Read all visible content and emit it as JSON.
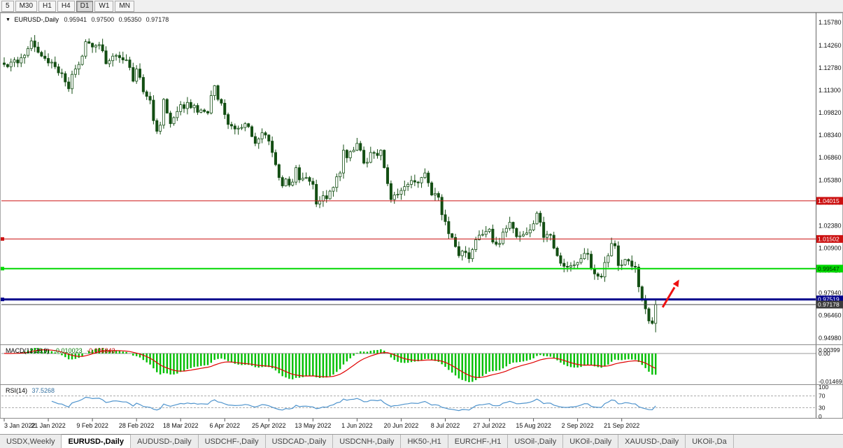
{
  "window": {
    "title_symbol": "EURUSD-,Daily",
    "open": "0.95941",
    "high": "0.97500",
    "low": "0.95350",
    "close": "0.97178"
  },
  "toolbar": {
    "timeframes": [
      "5",
      "M30",
      "H1",
      "H4",
      "D1",
      "W1",
      "MN"
    ],
    "active": "D1"
  },
  "chart_data": {
    "type": "candlestick",
    "symbol": "EURUSD",
    "timeframe": "Daily",
    "title": "EURUSD-,Daily 0.95941 0.97500 0.95350 0.97178",
    "y_range": [
      0.946,
      1.1605
    ],
    "y_axis_labels": [
      "1.15780",
      "1.14260",
      "1.12780",
      "1.11300",
      "1.09820",
      "1.08340",
      "1.06860",
      "1.05380",
      "1.03900",
      "1.02380",
      "1.00900",
      "0.99420",
      "0.97940",
      "0.96460",
      "0.94980"
    ],
    "x_labels": [
      "3 Jan 2022",
      "21 Jan 2022",
      "9 Feb 2022",
      "28 Feb 2022",
      "18 Mar 2022",
      "6 Apr 2022",
      "25 Apr 2022",
      "13 May 2022",
      "1 Jun 2022",
      "20 Jun 2022",
      "8 Jul 2022",
      "27 Jul 2022",
      "15 Aug 2022",
      "2 Sep 2022",
      "21 Sep 2022"
    ],
    "x_label_interval": 13,
    "first_open": 1.131,
    "last_candle_ohlc": [
      0.95941,
      0.975,
      0.9535,
      0.97178
    ],
    "closes": [
      1.13,
      1.1285,
      1.1315,
      1.133,
      1.131,
      1.1345,
      1.136,
      1.1405,
      1.1455,
      1.1415,
      1.138,
      1.1355,
      1.134,
      1.131,
      1.1315,
      1.1285,
      1.1245,
      1.124,
      1.1185,
      1.114,
      1.1235,
      1.127,
      1.13,
      1.1355,
      1.145,
      1.144,
      1.1415,
      1.1425,
      1.143,
      1.139,
      1.1305,
      1.1325,
      1.1355,
      1.136,
      1.1345,
      1.133,
      1.133,
      1.128,
      1.119,
      1.127,
      1.1215,
      1.112,
      1.109,
      1.1065,
      1.093,
      1.086,
      1.09,
      1.107,
      1.098,
      1.091,
      1.095,
      1.099,
      1.1035,
      1.101,
      1.105,
      1.1015,
      1.103,
      1.0985,
      1.1,
      1.099,
      1.098,
      1.1095,
      1.116,
      1.107,
      1.1045,
      1.097,
      1.0905,
      1.0895,
      1.0875,
      1.088,
      1.0885,
      1.091,
      1.089,
      1.0825,
      1.078,
      1.081,
      1.085,
      1.0835,
      1.0795,
      1.072,
      1.064,
      1.0555,
      1.05,
      1.0545,
      1.0505,
      1.0525,
      1.062,
      1.054,
      1.055,
      1.0555,
      1.053,
      1.051,
      1.038,
      1.04,
      1.0435,
      1.0415,
      1.0465,
      1.049,
      1.056,
      1.0585,
      1.0735,
      1.0685,
      1.0725,
      1.0735,
      1.078,
      1.0735,
      1.065,
      1.0655,
      1.072,
      1.0715,
      1.07,
      1.0735,
      1.062,
      1.0515,
      1.041,
      1.044,
      1.0445,
      1.047,
      1.0495,
      1.051,
      1.0535,
      1.0525,
      1.052,
      1.0555,
      1.0585,
      1.052,
      1.044,
      1.045,
      1.0425,
      1.031,
      1.0265,
      1.0185,
      1.016,
      1.01,
      1.004,
      1.007,
      1.006,
      1.002,
      1.008,
      1.0145,
      1.0175,
      1.018,
      1.02,
      1.0215,
      1.013,
      1.0115,
      1.012,
      1.0195,
      1.022,
      1.026,
      1.022,
      1.0165,
      1.017,
      1.018,
      1.019,
      1.021,
      1.025,
      1.032,
      1.026,
      1.016,
      1.018,
      1.0175,
      1.009,
      1.004,
      0.999,
      0.997,
      0.9965,
      0.9975,
      0.998,
      0.9995,
      1.002,
      1.0055,
      1.005,
      0.9955,
      0.992,
      0.9905,
      0.99,
      0.9995,
      1.004,
      1.012,
      1.0105,
      0.9975,
      0.998,
      1.0015,
      1.0005,
      0.997,
      0.9965,
      0.9835,
      0.9755,
      0.969,
      0.961,
      0.9594,
      0.9718
    ],
    "horizontal_lines": [
      {
        "price": 1.04015,
        "label": "1.04015",
        "color": "#cc1111",
        "text_color": "#ffffff",
        "width": 1,
        "handle": false
      },
      {
        "price": 1.01502,
        "label": "1.01502",
        "color": "#cc1111",
        "text_color": "#ffffff",
        "width": 1,
        "handle": true
      },
      {
        "price": 0.99547,
        "label": "0.99547",
        "color": "#00d800",
        "text_color": "#003300",
        "width": 2,
        "handle": true
      },
      {
        "price": 0.97519,
        "label": "0.97519",
        "color": "#00008b",
        "text_color": "#ffffff",
        "width": 3,
        "handle": true
      }
    ],
    "current_price": {
      "price": 0.97178,
      "label": "0.97178",
      "color": "#3c3c3c",
      "text_color": "#ffffff"
    },
    "arrow": {
      "color": "#ee1111"
    },
    "indicators": {
      "macd": {
        "label": "MACD(12,26,9)",
        "values_text_main": "-0.010023",
        "values_text_signal": "-0.005843",
        "axis_labels": [
          "0.00399",
          "0.00",
          "-0.01469"
        ],
        "histogram_color": "#00bf00",
        "signal_color": "#e00000"
      },
      "rsi": {
        "label": "RSI(14)",
        "value_text": "37.5268",
        "axis_labels": [
          "100",
          "70",
          "30",
          "0"
        ],
        "levels": [
          70,
          30
        ],
        "line_color": "#4f94cd"
      }
    }
  },
  "tabs": [
    {
      "label": "USDX,Weekly",
      "active": false
    },
    {
      "label": "EURUSD-,Daily",
      "active": true
    },
    {
      "label": "AUDUSD-,Daily",
      "active": false
    },
    {
      "label": "USDCHF-,Daily",
      "active": false
    },
    {
      "label": "USDCAD-,Daily",
      "active": false
    },
    {
      "label": "USDCNH-,Daily",
      "active": false
    },
    {
      "label": "HK50-,H1",
      "active": false
    },
    {
      "label": "EURCHF-,H1",
      "active": false
    },
    {
      "label": "USOil-,Daily",
      "active": false
    },
    {
      "label": "UKOil-,Daily",
      "active": false
    },
    {
      "label": "XAUUSD-,Daily",
      "active": false
    },
    {
      "label": "UKOil-,Da",
      "active": false
    }
  ]
}
